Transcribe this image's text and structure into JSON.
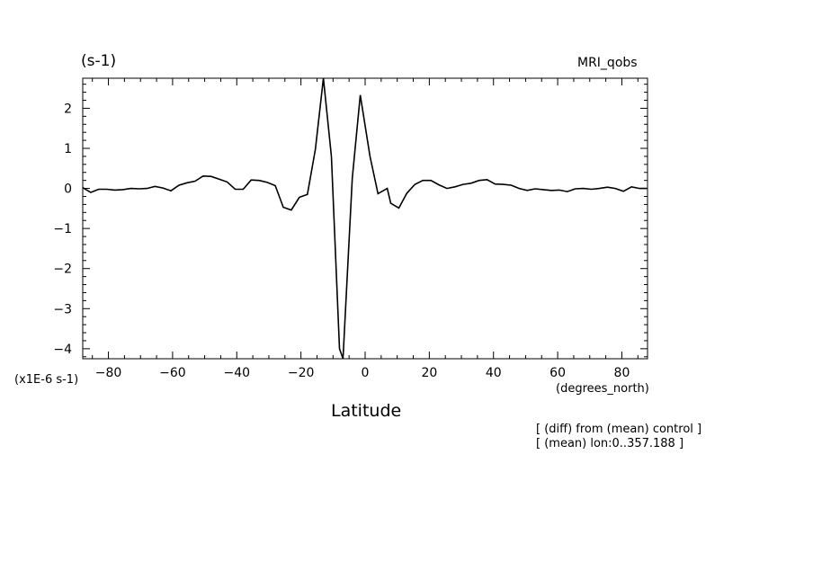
{
  "chart_data": {
    "type": "line",
    "unit_label": "(s-1)",
    "model_label": "MRI_qobs",
    "scale_label": "(x1E-6 s-1)",
    "xlabel": "Latitude",
    "xunit_label": "(degrees_north)",
    "notes": [
      "[ (diff) from (mean) control ]",
      "[ (mean) lon:0..357.188 ]"
    ],
    "xlim": [
      -88,
      88
    ],
    "ylim": [
      -4.25,
      2.75
    ],
    "xticks": [
      -80,
      -60,
      -40,
      -20,
      0,
      20,
      40,
      60,
      80
    ],
    "yticks": [
      2,
      1,
      0,
      -1,
      -2,
      -3,
      -4
    ],
    "grid": false,
    "series": [
      {
        "x": [
          -88,
          -85.5,
          -83,
          -80.5,
          -78,
          -75.5,
          -73,
          -70.5,
          -68,
          -65.5,
          -63,
          -60.5,
          -58,
          -55.5,
          -53,
          -50.5,
          -48,
          -45.5,
          -43,
          -40.5,
          -38,
          -35.5,
          -33,
          -30.5,
          -28,
          -25.5,
          -23,
          -20.5,
          -18,
          -15.5,
          -13,
          -10.5,
          -8,
          -6.9,
          -4,
          -1.5,
          1.5,
          4,
          6.9,
          8,
          10.5,
          13,
          15.5,
          18,
          20.5,
          23,
          25.5,
          28,
          30.5,
          33,
          35.5,
          38,
          40.5,
          43,
          45.5,
          48,
          50.5,
          53,
          55.5,
          58,
          60.5,
          63,
          65.5,
          68,
          70.5,
          73,
          75.5,
          78,
          80.5,
          83,
          85.5,
          88
        ],
        "y": [
          0.02,
          -0.1,
          -0.02,
          -0.02,
          -0.04,
          -0.03,
          0.0,
          -0.01,
          0.0,
          0.05,
          0.01,
          -0.06,
          0.08,
          0.14,
          0.18,
          0.31,
          0.3,
          0.23,
          0.16,
          -0.02,
          -0.02,
          0.21,
          0.2,
          0.15,
          0.07,
          -0.47,
          -0.54,
          -0.22,
          -0.15,
          0.98,
          2.75,
          0.8,
          -4.0,
          -4.25,
          0.25,
          2.33,
          0.8,
          -0.13,
          0.0,
          -0.37,
          -0.49,
          -0.12,
          0.1,
          0.2,
          0.2,
          0.09,
          0.0,
          0.04,
          0.1,
          0.13,
          0.2,
          0.22,
          0.11,
          0.1,
          0.08,
          0.0,
          -0.05,
          -0.01,
          -0.03,
          -0.05,
          -0.04,
          -0.08,
          -0.01,
          0.0,
          -0.02,
          0.0,
          0.03,
          0.0,
          -0.07,
          0.04,
          0.0,
          0.0
        ]
      }
    ]
  }
}
